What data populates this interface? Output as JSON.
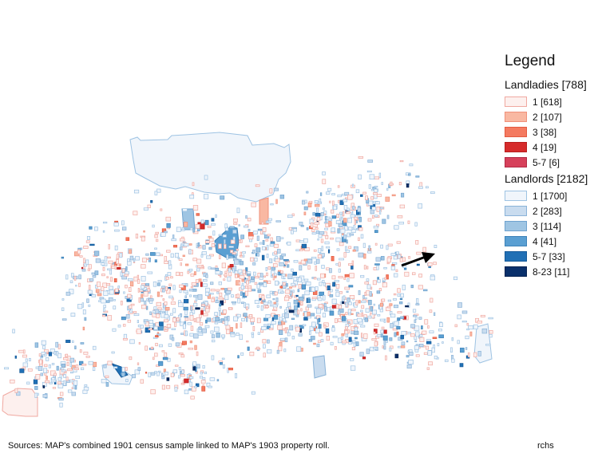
{
  "legend": {
    "title": "Legend",
    "landladies": {
      "title": "Landladies [788]",
      "items": [
        {
          "label": "1 [618]",
          "fill": "#fdf0ee",
          "stroke": "#f0a8a0"
        },
        {
          "label": "2 [107]",
          "fill": "#f9b8a2",
          "stroke": "#f0907a"
        },
        {
          "label": "3 [38]",
          "fill": "#f47a60",
          "stroke": "#e35a40"
        },
        {
          "label": "4 [19]",
          "fill": "#d62b2b",
          "stroke": "#b81e1e"
        },
        {
          "label": "5-7 [6]",
          "fill": "#d6405a",
          "stroke": "#b02a44"
        }
      ]
    },
    "landlords": {
      "title": "Landlords [2182]",
      "items": [
        {
          "label": "1 [1700]",
          "fill": "#f0f5fb",
          "stroke": "#9ec3e3"
        },
        {
          "label": "2 [283]",
          "fill": "#c9dcef",
          "stroke": "#8ab3d8"
        },
        {
          "label": "3 [114]",
          "fill": "#9fc5e3",
          "stroke": "#6fa3cf"
        },
        {
          "label": "4 [41]",
          "fill": "#5a9fd2",
          "stroke": "#3d82b8"
        },
        {
          "label": "5-7 [33]",
          "fill": "#2170b5",
          "stroke": "#155a99"
        },
        {
          "label": "8-23 [11]",
          "fill": "#0a306b",
          "stroke": "#062250"
        }
      ]
    }
  },
  "north_arrow_icon": "north-arrow",
  "source_text": "Sources: MAP's combined 1901 census sample linked to MAP's 1903 property roll.",
  "author_text": "rchs"
}
